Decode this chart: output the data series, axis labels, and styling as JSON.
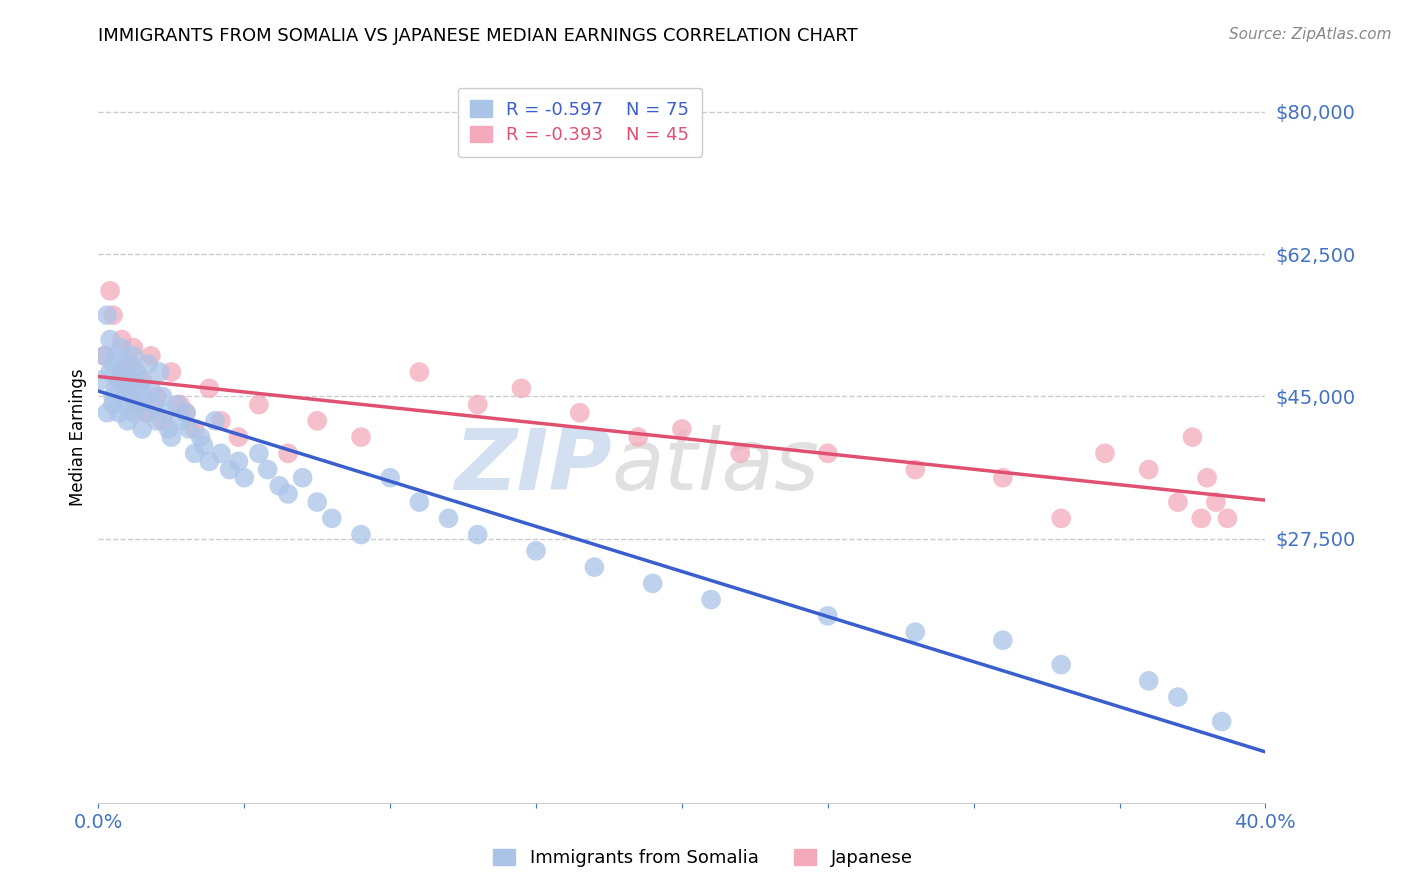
{
  "title": "IMMIGRANTS FROM SOMALIA VS JAPANESE MEDIAN EARNINGS CORRELATION CHART",
  "source": "Source: ZipAtlas.com",
  "ylabel": "Median Earnings",
  "xlim": [
    0.0,
    0.4
  ],
  "ylim": [
    -5000,
    85000
  ],
  "yticks": [
    27500,
    45000,
    62500,
    80000
  ],
  "ytick_labels": [
    "$27,500",
    "$45,000",
    "$62,500",
    "$80,000"
  ],
  "xtick_positions": [
    0.0,
    0.05,
    0.1,
    0.15,
    0.2,
    0.25,
    0.3,
    0.35,
    0.4
  ],
  "xtick_labels_sparse": {
    "0.0": "0.0%",
    "0.40": "40.0%"
  },
  "blue_color": "#aac4e8",
  "pink_color": "#f4aabb",
  "blue_line_color": "#3a5fcd",
  "pink_line_color": "#e05070",
  "legend_blue_label": "Immigrants from Somalia",
  "legend_pink_label": "Japanese",
  "legend_blue_R": "R = -0.597",
  "legend_blue_N": "N = 75",
  "legend_pink_R": "R = -0.393",
  "legend_pink_N": "N = 45",
  "watermark_zip": "ZIP",
  "watermark_atlas": "atlas",
  "blue_N": 75,
  "pink_N": 45,
  "background_color": "#ffffff",
  "grid_color": "#cccccc",
  "blue_x": [
    0.001,
    0.002,
    0.003,
    0.003,
    0.004,
    0.004,
    0.005,
    0.005,
    0.005,
    0.006,
    0.006,
    0.007,
    0.007,
    0.008,
    0.008,
    0.009,
    0.009,
    0.01,
    0.01,
    0.011,
    0.011,
    0.012,
    0.012,
    0.013,
    0.013,
    0.014,
    0.015,
    0.015,
    0.016,
    0.017,
    0.017,
    0.018,
    0.019,
    0.02,
    0.021,
    0.022,
    0.023,
    0.024,
    0.025,
    0.027,
    0.028,
    0.03,
    0.031,
    0.033,
    0.035,
    0.036,
    0.038,
    0.04,
    0.042,
    0.045,
    0.048,
    0.05,
    0.055,
    0.058,
    0.062,
    0.065,
    0.07,
    0.075,
    0.08,
    0.09,
    0.1,
    0.11,
    0.12,
    0.13,
    0.15,
    0.17,
    0.19,
    0.21,
    0.25,
    0.28,
    0.31,
    0.33,
    0.36,
    0.37,
    0.385
  ],
  "blue_y": [
    47000,
    50000,
    43000,
    55000,
    48000,
    52000,
    45000,
    49000,
    44000,
    46000,
    50000,
    47000,
    43000,
    48000,
    51000,
    44000,
    46000,
    49000,
    42000,
    47000,
    45000,
    50000,
    43000,
    46000,
    48000,
    44000,
    47000,
    41000,
    45000,
    43000,
    49000,
    46000,
    44000,
    42000,
    48000,
    45000,
    43000,
    41000,
    40000,
    44000,
    42000,
    43000,
    41000,
    38000,
    40000,
    39000,
    37000,
    42000,
    38000,
    36000,
    37000,
    35000,
    38000,
    36000,
    34000,
    33000,
    35000,
    32000,
    30000,
    28000,
    35000,
    32000,
    30000,
    28000,
    26000,
    24000,
    22000,
    20000,
    18000,
    16000,
    15000,
    12000,
    10000,
    8000,
    5000
  ],
  "pink_x": [
    0.002,
    0.004,
    0.005,
    0.007,
    0.008,
    0.009,
    0.01,
    0.011,
    0.012,
    0.013,
    0.015,
    0.016,
    0.018,
    0.02,
    0.022,
    0.025,
    0.028,
    0.03,
    0.033,
    0.038,
    0.042,
    0.048,
    0.055,
    0.065,
    0.075,
    0.09,
    0.11,
    0.13,
    0.145,
    0.165,
    0.185,
    0.2,
    0.22,
    0.25,
    0.28,
    0.31,
    0.33,
    0.345,
    0.36,
    0.37,
    0.375,
    0.378,
    0.38,
    0.383,
    0.387
  ],
  "pink_y": [
    50000,
    58000,
    55000,
    47000,
    52000,
    48000,
    46000,
    49000,
    51000,
    44000,
    47000,
    43000,
    50000,
    45000,
    42000,
    48000,
    44000,
    43000,
    41000,
    46000,
    42000,
    40000,
    44000,
    38000,
    42000,
    40000,
    48000,
    44000,
    46000,
    43000,
    40000,
    41000,
    38000,
    38000,
    36000,
    35000,
    30000,
    38000,
    36000,
    32000,
    40000,
    30000,
    35000,
    32000,
    30000
  ]
}
